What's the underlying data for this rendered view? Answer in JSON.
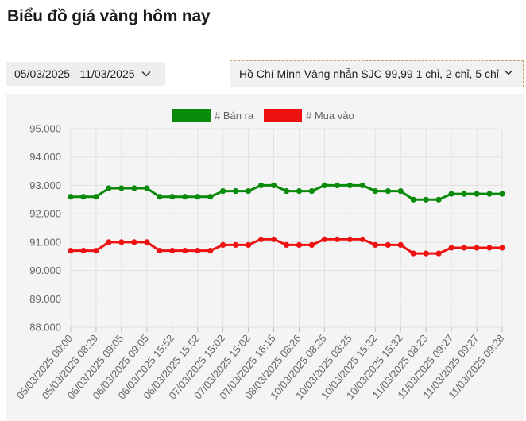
{
  "page": {
    "title": "Biểu đồ giá vàng hôm nay"
  },
  "filters": {
    "date_range": "05/03/2025 - 11/03/2025",
    "location_product": "Hồ Chí Minh Vàng nhẫn SJC 99,99 1 chỉ, 2 chỉ, 5 chỉ"
  },
  "colors": {
    "sell": "#0a8a0a",
    "buy": "#ee1111",
    "grid": "#e2e2e2",
    "chart_bg": "#f4f4f4"
  },
  "chart_data": {
    "type": "line",
    "title": "",
    "xlabel": "",
    "ylabel": "",
    "ylim": [
      88000,
      95000
    ],
    "y_ticks": [
      "95.000",
      "94.000",
      "93.000",
      "92.000",
      "91.000",
      "90.000",
      "89.000",
      "88.000"
    ],
    "y_tick_values": [
      95000,
      94000,
      93000,
      92000,
      91000,
      90000,
      89000,
      88000
    ],
    "legend_position": "top-center",
    "grid": true,
    "x_tick_labels": [
      "05/03/2025 00:00",
      "05/03/2025 08:29",
      "06/03/2025 09:05",
      "06/03/2025 09:05",
      "06/03/2025 15:52",
      "06/03/2025 15:52",
      "07/03/2025 15:02",
      "07/03/2025 15:02",
      "07/03/2025 16:15",
      "08/03/2025 08:26",
      "10/03/2025 08:25",
      "10/03/2025 08:25",
      "10/03/2025 15:32",
      "10/03/2025 15:32",
      "11/03/2025 08:23",
      "11/03/2025 09:27",
      "11/03/2025 09:27",
      "11/03/2025 09:28"
    ],
    "series": [
      {
        "name": "# Bán ra",
        "color": "#0a8a0a",
        "values": [
          92600,
          92600,
          92600,
          92900,
          92900,
          92900,
          92900,
          92600,
          92600,
          92600,
          92600,
          92600,
          92800,
          92800,
          92800,
          93000,
          93000,
          92800,
          92800,
          92800,
          93000,
          93000,
          93000,
          93000,
          92800,
          92800,
          92800,
          92500,
          92500,
          92500,
          92700,
          92700,
          92700,
          92700,
          92700
        ]
      },
      {
        "name": "# Mua vào",
        "color": "#ee1111",
        "values": [
          90700,
          90700,
          90700,
          91000,
          91000,
          91000,
          91000,
          90700,
          90700,
          90700,
          90700,
          90700,
          90900,
          90900,
          90900,
          91100,
          91100,
          90900,
          90900,
          90900,
          91100,
          91100,
          91100,
          91100,
          90900,
          90900,
          90900,
          90600,
          90600,
          90600,
          90800,
          90800,
          90800,
          90800,
          90800
        ]
      }
    ]
  }
}
